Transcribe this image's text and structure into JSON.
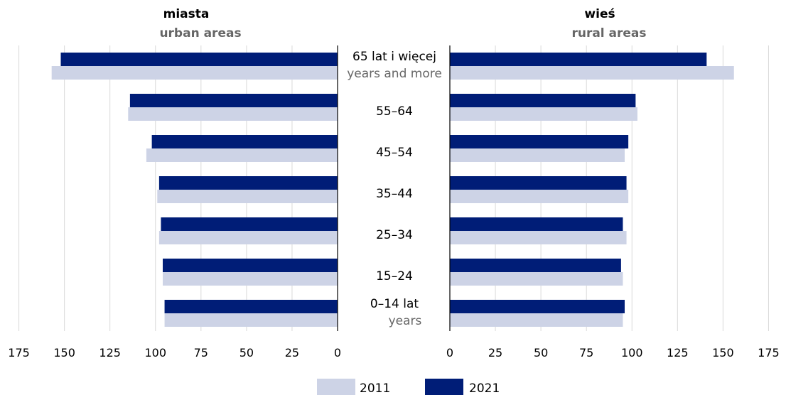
{
  "chart_data": {
    "type": "bar",
    "orientation": "horizontal",
    "layout": "back-to-back",
    "colors": {
      "2011": "#cdd3e6",
      "2021": "#001d77",
      "grid": "#d9d9d9",
      "axis": "#000000"
    },
    "categories": [
      {
        "label": "65 lat i więcej",
        "sublabel": "years and more"
      },
      {
        "label": "55–64",
        "sublabel": ""
      },
      {
        "label": "45–54",
        "sublabel": ""
      },
      {
        "label": "35–44",
        "sublabel": ""
      },
      {
        "label": "25–34",
        "sublabel": ""
      },
      {
        "label": "15–24",
        "sublabel": ""
      },
      {
        "label": "0–14 lat",
        "sublabel": "years"
      }
    ],
    "panels": [
      {
        "side": "left",
        "title": "miasta",
        "subtitle": "urban areas",
        "xlim": [
          0,
          175
        ],
        "ticks": [
          "175",
          "150",
          "125",
          "100",
          "75",
          "50",
          "25",
          "0"
        ],
        "series": [
          {
            "name": "2011",
            "values": [
              157,
              115,
              105,
              99,
              98,
              96,
              95
            ]
          },
          {
            "name": "2021",
            "values": [
              152,
              114,
              102,
              98,
              97,
              96,
              95
            ]
          }
        ]
      },
      {
        "side": "right",
        "title": "wieś",
        "subtitle": "rural areas",
        "xlim": [
          0,
          175
        ],
        "ticks": [
          "0",
          "25",
          "50",
          "75",
          "100",
          "125",
          "150",
          "175"
        ],
        "series": [
          {
            "name": "2011",
            "values": [
              156,
              103,
              96,
              98,
              97,
              95,
              95
            ]
          },
          {
            "name": "2021",
            "values": [
              141,
              102,
              98,
              97,
              95,
              94,
              96
            ]
          }
        ]
      }
    ],
    "legend": {
      "placement": "bottom-center",
      "items": [
        "2011",
        "2021"
      ]
    }
  }
}
